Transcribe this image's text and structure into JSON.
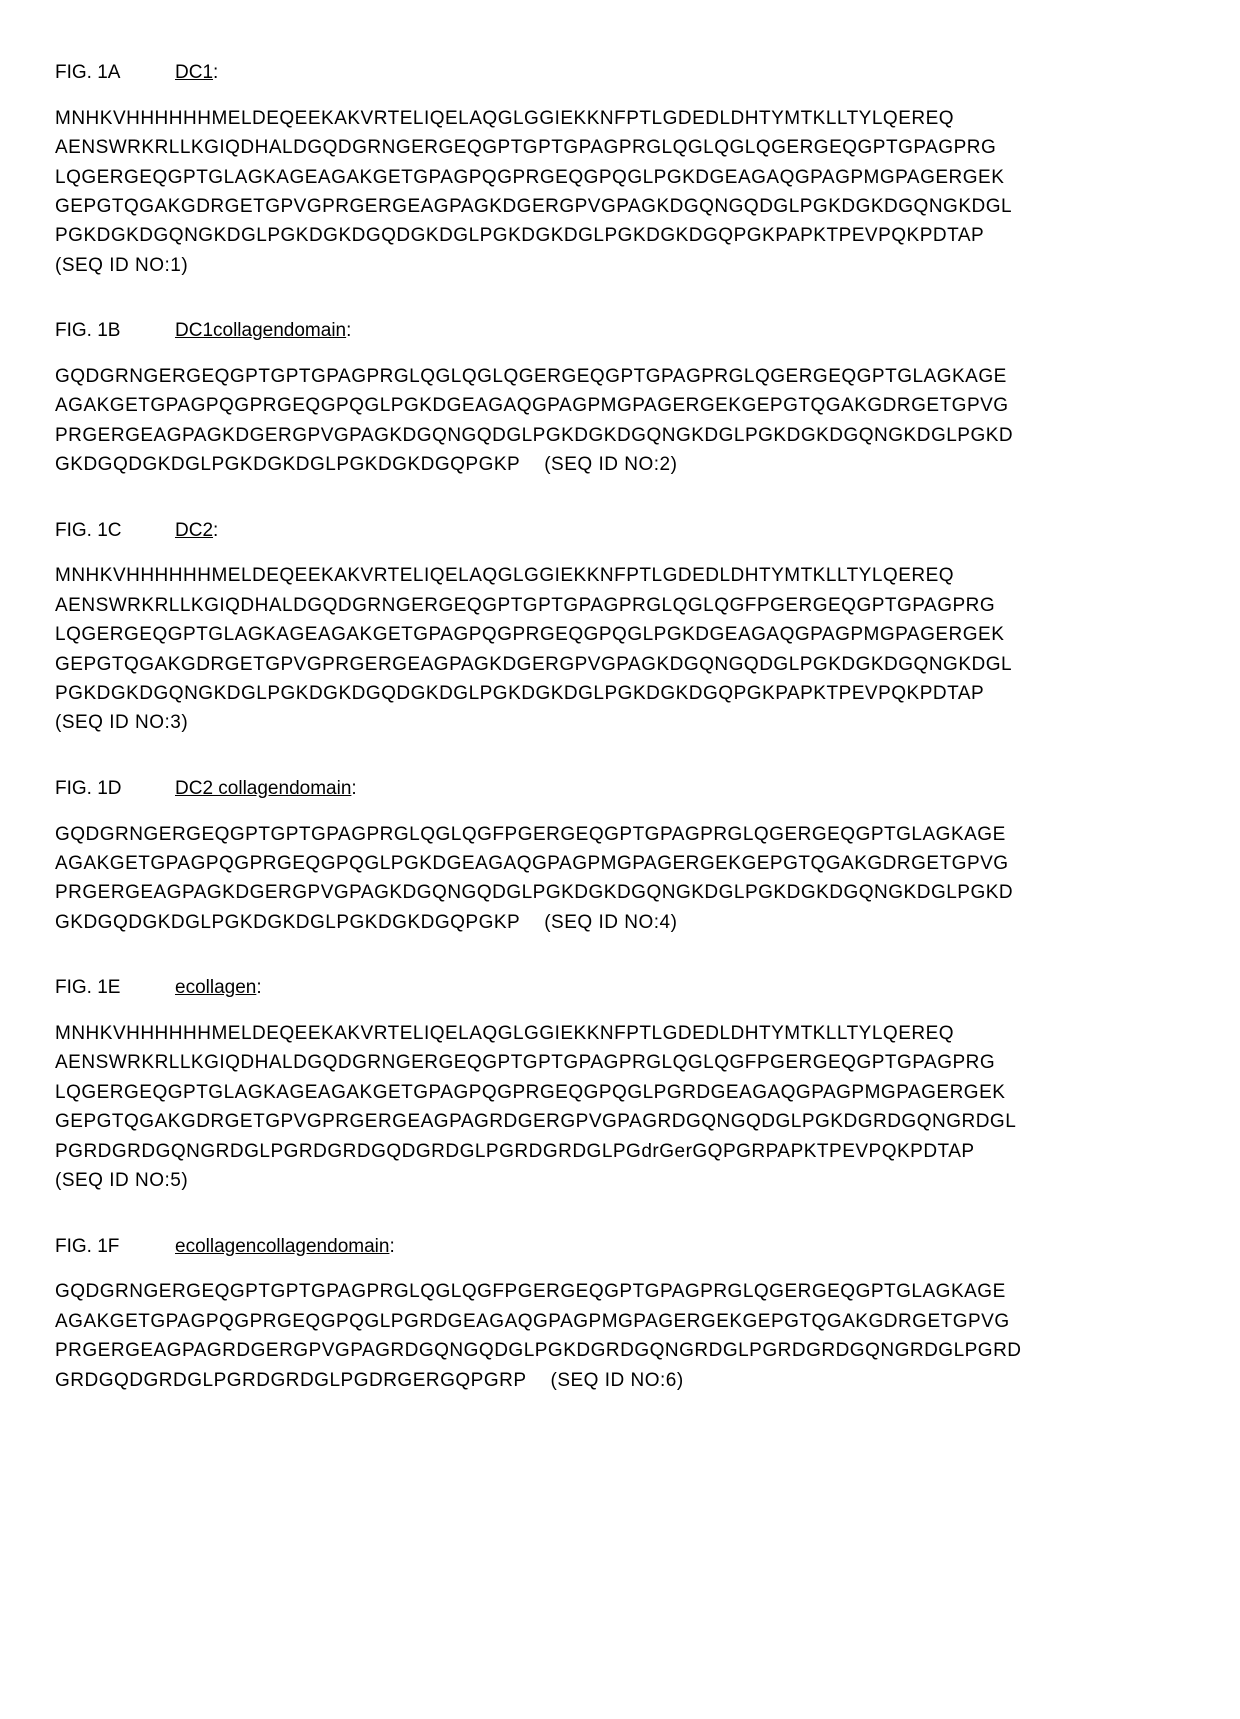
{
  "sections": [
    {
      "fig": "FIG. 1A",
      "title": "DC1",
      "lines": [
        "MNHKVHHHHHHMELDEQEEKAKVRTELIQELAQGLGGIEKKNFPTLGDEDLDHTYMTKLLTYLQEREQ",
        "AENSWRKRLLKGIQDHALDGQDGRNGERGEQGPTGPTGPAGPRGLQGLQGLQGERGEQGPTGPAGPRG",
        "LQGERGEQGPTGLAGKAGEAGAKGETGPAGPQGPRGEQGPQGLPGKDGEAGAQGPAGPMGPAGERGEK",
        "GEPGTQGAKGDRGETGPVGPRGERGEAGPAGKDGERGPVGPAGKDGQNGQDGLPGKDGKDGQNGKDGL",
        "PGKDGKDGQNGKDGLPGKDGKDGQDGKDGLPGKDGKDGLPGKDGKDGQPGKPAPKTPEVPQKPDTAP"
      ],
      "seq_id": "(SEQ ID NO:1)",
      "seq_inline": false
    },
    {
      "fig": "FIG. 1B",
      "title": "DC1collagendomain",
      "lines": [
        "GQDGRNGERGEQGPTGPTGPAGPRGLQGLQGLQGERGEQGPTGPAGPRGLQGERGEQGPTGLAGKAGE",
        "AGAKGETGPAGPQGPRGEQGPQGLPGKDGEAGAQGPAGPMGPAGERGEKGEPGTQGAKGDRGETGPVG",
        "PRGERGEAGPAGKDGERGPVGPAGKDGQNGQDGLPGKDGKDGQNGKDGLPGKDGKDGQNGKDGLPGKD",
        "GKDGQDGKDGLPGKDGKDGLPGKDGKDGQPGKP"
      ],
      "seq_id": "(SEQ ID NO:2)",
      "seq_inline": true
    },
    {
      "fig": "FIG. 1C",
      "title": "DC2",
      "lines": [
        "MNHKVHHHHHHMELDEQEEKAKVRTELIQELAQGLGGIEKKNFPTLGDEDLDHTYMTKLLTYLQEREQ",
        "AENSWRKRLLKGIQDHALDGQDGRNGERGEQGPTGPTGPAGPRGLQGLQGFPGERGEQGPTGPAGPRG",
        "LQGERGEQGPTGLAGKAGEAGAKGETGPAGPQGPRGEQGPQGLPGKDGEAGAQGPAGPMGPAGERGEK",
        "GEPGTQGAKGDRGETGPVGPRGERGEAGPAGKDGERGPVGPAGKDGQNGQDGLPGKDGKDGQNGKDGL",
        "PGKDGKDGQNGKDGLPGKDGKDGQDGKDGLPGKDGKDGLPGKDGKDGQPGKPAPKTPEVPQKPDTAP"
      ],
      "seq_id": "(SEQ ID NO:3)",
      "seq_inline": false
    },
    {
      "fig": "FIG. 1D",
      "title": "DC2 collagendomain",
      "lines": [
        "GQDGRNGERGEQGPTGPTGPAGPRGLQGLQGFPGERGEQGPTGPAGPRGLQGERGEQGPTGLAGKAGE",
        "AGAKGETGPAGPQGPRGEQGPQGLPGKDGEAGAQGPAGPMGPAGERGEKGEPGTQGAKGDRGETGPVG",
        "PRGERGEAGPAGKDGERGPVGPAGKDGQNGQDGLPGKDGKDGQNGKDGLPGKDGKDGQNGKDGLPGKD",
        "GKDGQDGKDGLPGKDGKDGLPGKDGKDGQPGKP"
      ],
      "seq_id": "(SEQ ID NO:4)",
      "seq_inline": true
    },
    {
      "fig": "FIG. 1E",
      "title": "ecollagen",
      "lines": [
        "MNHKVHHHHHHMELDEQEEKAKVRTELIQELAQGLGGIEKKNFPTLGDEDLDHTYMTKLLTYLQEREQ",
        "AENSWRKRLLKGIQDHALDGQDGRNGERGEQGPTGPTGPAGPRGLQGLQGFPGERGEQGPTGPAGPRG",
        "LQGERGEQGPTGLAGKAGEAGAKGETGPAGPQGPRGEQGPQGLPGRDGEAGAQGPAGPMGPAGERGEK",
        "GEPGTQGAKGDRGETGPVGPRGERGEAGPAGRDGERGPVGPAGRDGQNGQDGLPGKDGRDGQNGRDGL",
        "PGRDGRDGQNGRDGLPGRDGRDGQDGRDGLPGRDGRDGLPGdrGerGQPGRPAPKTPEVPQKPDTAP"
      ],
      "seq_id": "(SEQ ID NO:5)",
      "seq_inline": false
    },
    {
      "fig": "FIG. 1F",
      "title": "ecollagencollagendomain",
      "lines": [
        "GQDGRNGERGEQGPTGPTGPAGPRGLQGLQGFPGERGEQGPTGPAGPRGLQGERGEQGPTGLAGKAGE",
        "AGAKGETGPAGPQGPRGEQGPQGLPGRDGEAGAQGPAGPMGPAGERGEKGEPGTQGAKGDRGETGPVG",
        "PRGERGEAGPAGRDGERGPVGPAGRDGQNGQDGLPGKDGRDGQNGRDGLPGRDGRDGQNGRDGLPGRD",
        "GRDGQDGRDGLPGRDGRDGLPGDRGERGQPGRP"
      ],
      "seq_id": "(SEQ ID NO:6)",
      "seq_inline": true
    }
  ]
}
